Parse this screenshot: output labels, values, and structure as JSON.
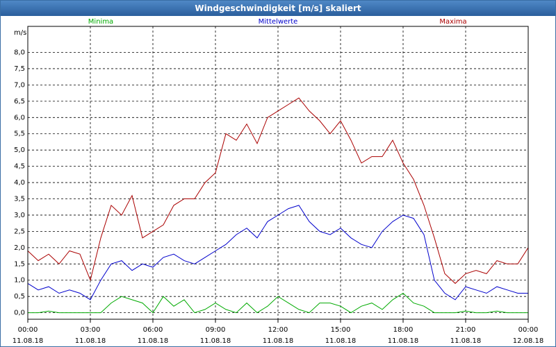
{
  "chart_data": {
    "type": "line",
    "title": "Windgeschwindigkeit [m/s] skaliert",
    "ylabel": "m/s",
    "ylim": [
      -0.2,
      8.8
    ],
    "yticks": [
      "0,0",
      "0,5",
      "1,0",
      "1,5",
      "2,0",
      "2,5",
      "3,0",
      "3,5",
      "4,0",
      "4,5",
      "5,0",
      "5,5",
      "6,0",
      "6,5",
      "7,0",
      "7,5",
      "8,0"
    ],
    "xlim": [
      0,
      24
    ],
    "xticks": [
      {
        "time": "00:00",
        "date": "11.08.18"
      },
      {
        "time": "03:00",
        "date": "11.08.18"
      },
      {
        "time": "06:00",
        "date": "11.08.18"
      },
      {
        "time": "09:00",
        "date": "11.08.18"
      },
      {
        "time": "12:00",
        "date": "11.08.18"
      },
      {
        "time": "15:00",
        "date": "11.08.18"
      },
      {
        "time": "18:00",
        "date": "11.08.18"
      },
      {
        "time": "21:00",
        "date": "11.08.18"
      },
      {
        "time": "00:00",
        "date": "12.08.18"
      }
    ],
    "grid": true,
    "series": [
      {
        "name": "Minima",
        "color": "#00aa00",
        "x": [
          0,
          0.5,
          1,
          1.5,
          2,
          2.5,
          3,
          3.5,
          4,
          4.5,
          5,
          5.5,
          6,
          6.5,
          7,
          7.5,
          8,
          8.5,
          9,
          9.5,
          10,
          10.5,
          11,
          11.5,
          12,
          12.5,
          13,
          13.5,
          14,
          14.5,
          15,
          15.5,
          16,
          16.5,
          17,
          17.5,
          18,
          18.5,
          19,
          19.5,
          20,
          20.5,
          21,
          21.5,
          22,
          22.5,
          23,
          23.5,
          24
        ],
        "values": [
          0,
          0,
          0.05,
          0,
          0,
          0,
          0,
          0,
          0.3,
          0.5,
          0.4,
          0.3,
          0,
          0.5,
          0.2,
          0.4,
          0,
          0.1,
          0.3,
          0.1,
          0,
          0.3,
          0,
          0.2,
          0.5,
          0.3,
          0.1,
          0,
          0.3,
          0.3,
          0.2,
          0,
          0.2,
          0.3,
          0.1,
          0.4,
          0.6,
          0.3,
          0.2,
          0,
          0,
          0,
          0.05,
          0,
          0,
          0.05,
          0,
          0,
          0
        ]
      },
      {
        "name": "Mittelwerte",
        "color": "#0000cc",
        "x": [
          0,
          0.5,
          1,
          1.5,
          2,
          2.5,
          3,
          3.5,
          4,
          4.5,
          5,
          5.5,
          6,
          6.5,
          7,
          7.5,
          8,
          8.5,
          9,
          9.5,
          10,
          10.5,
          11,
          11.5,
          12,
          12.5,
          13,
          13.5,
          14,
          14.5,
          15,
          15.5,
          16,
          16.5,
          17,
          17.5,
          18,
          18.5,
          19,
          19.5,
          20,
          20.5,
          21,
          21.5,
          22,
          22.5,
          23,
          23.5,
          24
        ],
        "values": [
          0.9,
          0.7,
          0.8,
          0.6,
          0.7,
          0.6,
          0.4,
          1.0,
          1.5,
          1.6,
          1.3,
          1.5,
          1.4,
          1.7,
          1.8,
          1.6,
          1.5,
          1.7,
          1.9,
          2.1,
          2.4,
          2.6,
          2.3,
          2.8,
          3.0,
          3.2,
          3.3,
          2.8,
          2.5,
          2.4,
          2.6,
          2.3,
          2.1,
          2.0,
          2.5,
          2.8,
          3.0,
          2.9,
          2.4,
          1.0,
          0.6,
          0.4,
          0.8,
          0.7,
          0.6,
          0.8,
          0.7,
          0.6,
          0.6
        ]
      },
      {
        "name": "Maxima",
        "color": "#aa0000",
        "x": [
          0,
          0.5,
          1,
          1.5,
          2,
          2.5,
          3,
          3.5,
          4,
          4.5,
          5,
          5.5,
          6,
          6.5,
          7,
          7.5,
          8,
          8.5,
          9,
          9.5,
          10,
          10.5,
          11,
          11.5,
          12,
          12.5,
          13,
          13.5,
          14,
          14.5,
          15,
          15.5,
          16,
          16.5,
          17,
          17.5,
          18,
          18.5,
          19,
          19.5,
          20,
          20.5,
          21,
          21.5,
          22,
          22.5,
          23,
          23.5,
          24
        ],
        "values": [
          1.9,
          1.6,
          1.8,
          1.5,
          1.9,
          1.8,
          1.0,
          2.3,
          3.3,
          3.0,
          3.6,
          2.3,
          2.5,
          2.7,
          3.3,
          3.5,
          3.5,
          4.0,
          4.3,
          5.5,
          5.3,
          5.8,
          5.2,
          6.0,
          6.2,
          6.4,
          6.6,
          6.2,
          5.9,
          5.5,
          5.9,
          5.3,
          4.6,
          4.8,
          4.8,
          5.3,
          4.6,
          4.1,
          3.3,
          2.3,
          1.2,
          0.9,
          1.2,
          1.3,
          1.2,
          1.6,
          1.5,
          1.5,
          2.0
        ]
      }
    ]
  }
}
